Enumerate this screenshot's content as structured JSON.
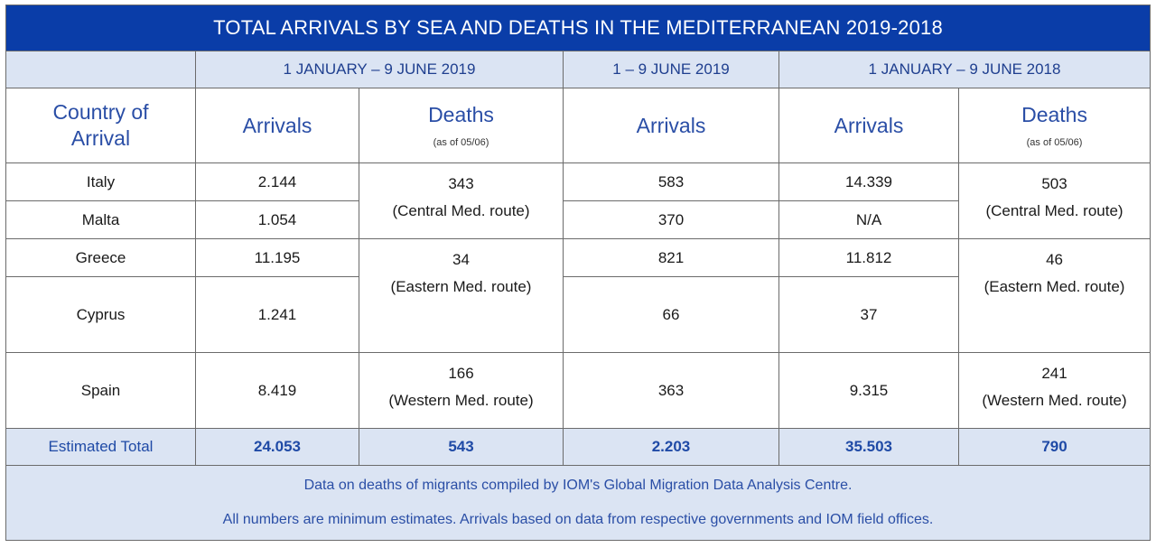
{
  "title": "TOTAL ARRIVALS BY SEA AND DEATHS IN THE MEDITERRANEAN 2019-2018",
  "periods": {
    "p1": "1 JANUARY – 9 JUNE 2019",
    "p2": "1 – 9 JUNE 2019",
    "p3": "1 JANUARY – 9 JUNE 2018"
  },
  "headers": {
    "country": "Country of Arrival",
    "arrivals": "Arrivals",
    "deaths": "Deaths",
    "deaths_note": "(as of 05/06)"
  },
  "rows": {
    "italy": {
      "country": "Italy",
      "arr2019": "2.144",
      "arrJune": "583",
      "arr2018": "14.339"
    },
    "malta": {
      "country": "Malta",
      "arr2019": "1.054",
      "arrJune": "370",
      "arr2018": "N/A"
    },
    "greece": {
      "country": "Greece",
      "arr2019": "11.195",
      "arrJune": "821",
      "arr2018": "11.812"
    },
    "cyprus": {
      "country": "Cyprus",
      "arr2019": "1.241",
      "arrJune": "66",
      "arr2018": "37"
    },
    "spain": {
      "country": "Spain",
      "arr2019": "8.419",
      "arrJune": "363",
      "arr2018": "9.315"
    }
  },
  "deaths_routes": {
    "central": {
      "d2019": "343",
      "d2018": "503",
      "label": "(Central Med. route)"
    },
    "eastern": {
      "d2019": "34",
      "d2018": "46",
      "label": "(Eastern Med. route)"
    },
    "western": {
      "d2019": "166",
      "d2018": "241",
      "label": "(Western Med. route)"
    }
  },
  "total": {
    "label": "Estimated Total",
    "arr2019": "24.053",
    "deaths2019": "543",
    "arrJune": "2.203",
    "arr2018": "35.503",
    "deaths2018": "790"
  },
  "footer": {
    "line1": "Data on deaths of migrants compiled by IOM's Global Migration Data Analysis Centre.",
    "line2": "All numbers are minimum estimates. Arrivals based on data from respective governments and IOM field offices."
  },
  "colors": {
    "title_bg": "#0a3da8",
    "band_bg": "#dbe4f3",
    "header_text": "#2a4ea6"
  }
}
